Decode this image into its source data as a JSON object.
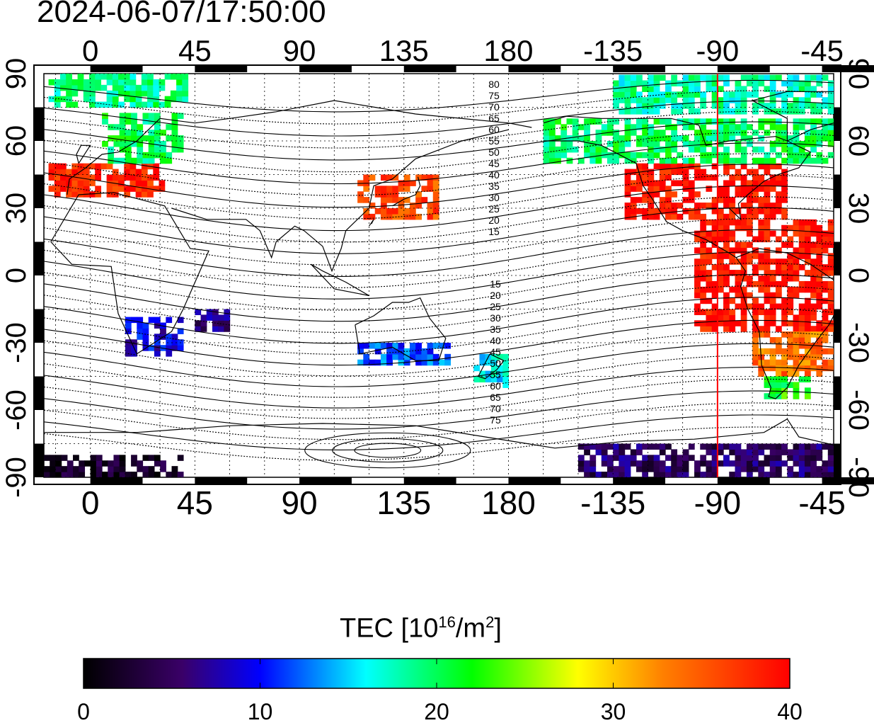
{
  "title": "2024-06-07/17:50:00",
  "colorbar": {
    "label_prefix": "TEC  [10",
    "label_exp1": "16",
    "label_mid": "/m",
    "label_exp2": "2",
    "label_suffix": "]",
    "ticks": [
      "0",
      "10",
      "20",
      "30",
      "40"
    ],
    "range": [
      0,
      40
    ],
    "colors": [
      "#000000",
      "#3a0068",
      "#0000ff",
      "#00ffff",
      "#00ff00",
      "#ffff00",
      "#ff0000"
    ]
  },
  "map": {
    "lon_ticks_top": [
      "0",
      "45",
      "90",
      "135",
      "180",
      "-135",
      "-90",
      "-45"
    ],
    "lon_ticks_bottom": [
      "0",
      "45",
      "90",
      "135",
      "180",
      "-135",
      "-90",
      "-45"
    ],
    "lat_ticks_left": [
      "90",
      "60",
      "30",
      "0",
      "-30",
      "-60",
      "-90"
    ],
    "lat_ticks_right": [
      "90",
      "60",
      "30",
      "0",
      "-30",
      "-60",
      "-90"
    ],
    "lon_range": [
      -20,
      320
    ],
    "lat_range": [
      -90,
      90
    ],
    "sun_meridian_lon": 270,
    "sun_meridian_color": "#ff0000",
    "contour_labels_north": [
      "80",
      "75",
      "70",
      "65",
      "60",
      "55",
      "50",
      "45",
      "40",
      "35",
      "30",
      "25",
      "20",
      "15"
    ],
    "contour_labels_south": [
      "15",
      "20",
      "25",
      "30",
      "35",
      "40",
      "45",
      "50",
      "55",
      "60",
      "65",
      "70",
      "75"
    ]
  },
  "chart_data": {
    "type": "heatmap",
    "title": "2024-06-07/17:50:00",
    "xlabel": "",
    "ylabel": "",
    "colorbar_label": "TEC [10^16/m^2]",
    "xlim": [
      -20,
      320
    ],
    "ylim": [
      -90,
      90
    ],
    "zlim": [
      0,
      40
    ],
    "grid": true,
    "regions": [
      {
        "lon": [
          -18,
          30
        ],
        "lat": [
          35,
          48
        ],
        "tec": 38
      },
      {
        "lon": [
          5,
          40
        ],
        "lat": [
          50,
          72
        ],
        "tec": 20
      },
      {
        "lon": [
          -18,
          40
        ],
        "lat": [
          75,
          88
        ],
        "tec": 19
      },
      {
        "lon": [
          115,
          150
        ],
        "lat": [
          25,
          45
        ],
        "tec": 36
      },
      {
        "lon": [
          15,
          40
        ],
        "lat": [
          -36,
          -20
        ],
        "tec": 9
      },
      {
        "lon": [
          45,
          60
        ],
        "lat": [
          -25,
          -15
        ],
        "tec": 6
      },
      {
        "lon": [
          165,
          180
        ],
        "lat": [
          -50,
          -35
        ],
        "tec": 16
      },
      {
        "lon": [
          115,
          155
        ],
        "lat": [
          -40,
          -30
        ],
        "tec": 12
      },
      {
        "lon": [
          230,
          300
        ],
        "lat": [
          25,
          50
        ],
        "tec": 39
      },
      {
        "lon": [
          260,
          320
        ],
        "lat": [
          -25,
          25
        ],
        "tec": 39
      },
      {
        "lon": [
          285,
          320
        ],
        "lat": [
          -45,
          -25
        ],
        "tec": 34
      },
      {
        "lon": [
          290,
          310
        ],
        "lat": [
          -55,
          -45
        ],
        "tec": 22
      },
      {
        "lon": [
          195,
          320
        ],
        "lat": [
          50,
          70
        ],
        "tec": 20
      },
      {
        "lon": [
          225,
          320
        ],
        "lat": [
          72,
          88
        ],
        "tec": 18
      },
      {
        "lon": [
          210,
          320
        ],
        "lat": [
          -90,
          -75
        ],
        "tec": 5
      },
      {
        "lon": [
          -20,
          40
        ],
        "lat": [
          -90,
          -82
        ],
        "tec": 2
      }
    ]
  }
}
